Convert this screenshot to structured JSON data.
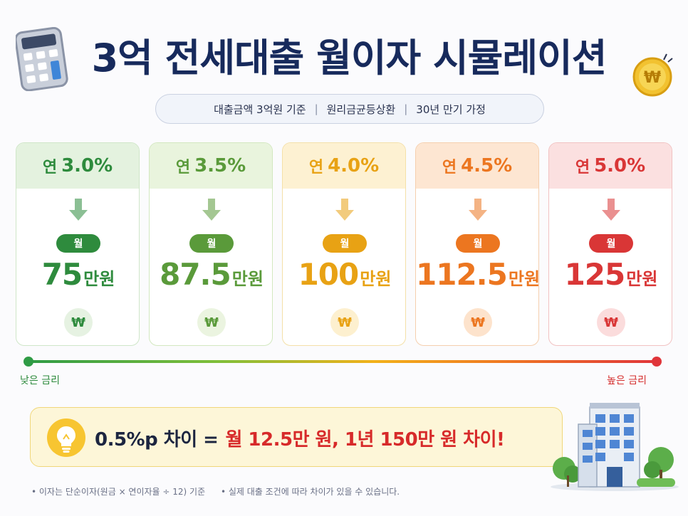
{
  "header": {
    "title": "3억 전세대출 월이자 시뮬레이션",
    "calculator_icon": "calculator-icon",
    "coin_icon": "won-coin-icon"
  },
  "subtitle": {
    "items": [
      "대출금액 3억원 기준",
      "원리금균등상환",
      "30년 만기 가정"
    ],
    "separator": "|"
  },
  "cards": [
    {
      "prefix": "연",
      "rate": "3.0%",
      "badge": "월",
      "amount": "75",
      "unit": "만원",
      "symbol": "₩",
      "color": "#2e8b3d",
      "light": "#e4f2df",
      "border": "#cfe6c8",
      "won_bg": "#e6f2e2"
    },
    {
      "prefix": "연",
      "rate": "3.5%",
      "badge": "월",
      "amount": "87.5",
      "unit": "만원",
      "symbol": "₩",
      "color": "#5a9a3a",
      "light": "#e9f4dd",
      "border": "#d3e8c0",
      "won_bg": "#ebf4e0"
    },
    {
      "prefix": "연",
      "rate": "4.0%",
      "badge": "월",
      "amount": "100",
      "unit": "만원",
      "symbol": "₩",
      "color": "#e8a214",
      "light": "#fdf1d2",
      "border": "#f4e0a8",
      "won_bg": "#fdf0cf"
    },
    {
      "prefix": "연",
      "rate": "4.5%",
      "badge": "월",
      "amount": "112.5",
      "unit": "만원",
      "symbol": "₩",
      "color": "#ec7620",
      "light": "#fde6d2",
      "border": "#f5cfae",
      "won_bg": "#fde3cc"
    },
    {
      "prefix": "연",
      "rate": "5.0%",
      "badge": "월",
      "amount": "125",
      "unit": "만원",
      "symbol": "₩",
      "color": "#d93636",
      "light": "#fbe0e0",
      "border": "#f1c2c2",
      "won_bg": "#fbdcdc"
    }
  ],
  "scale": {
    "low_label": "낮은 금리",
    "high_label": "높은 금리"
  },
  "callout": {
    "icon": "lightbulb-icon",
    "lead": "0.5%p 차이 =",
    "highlight": "월 12.5만 원, 1년 150만 원 차이!"
  },
  "building_icon": "office-building-icon",
  "footnotes": [
    "• 이자는 단순이자(원금 × 연이자율 ÷ 12) 기준",
    "• 실제 대출 조건에 따라 차이가 있을 수 있습니다."
  ]
}
